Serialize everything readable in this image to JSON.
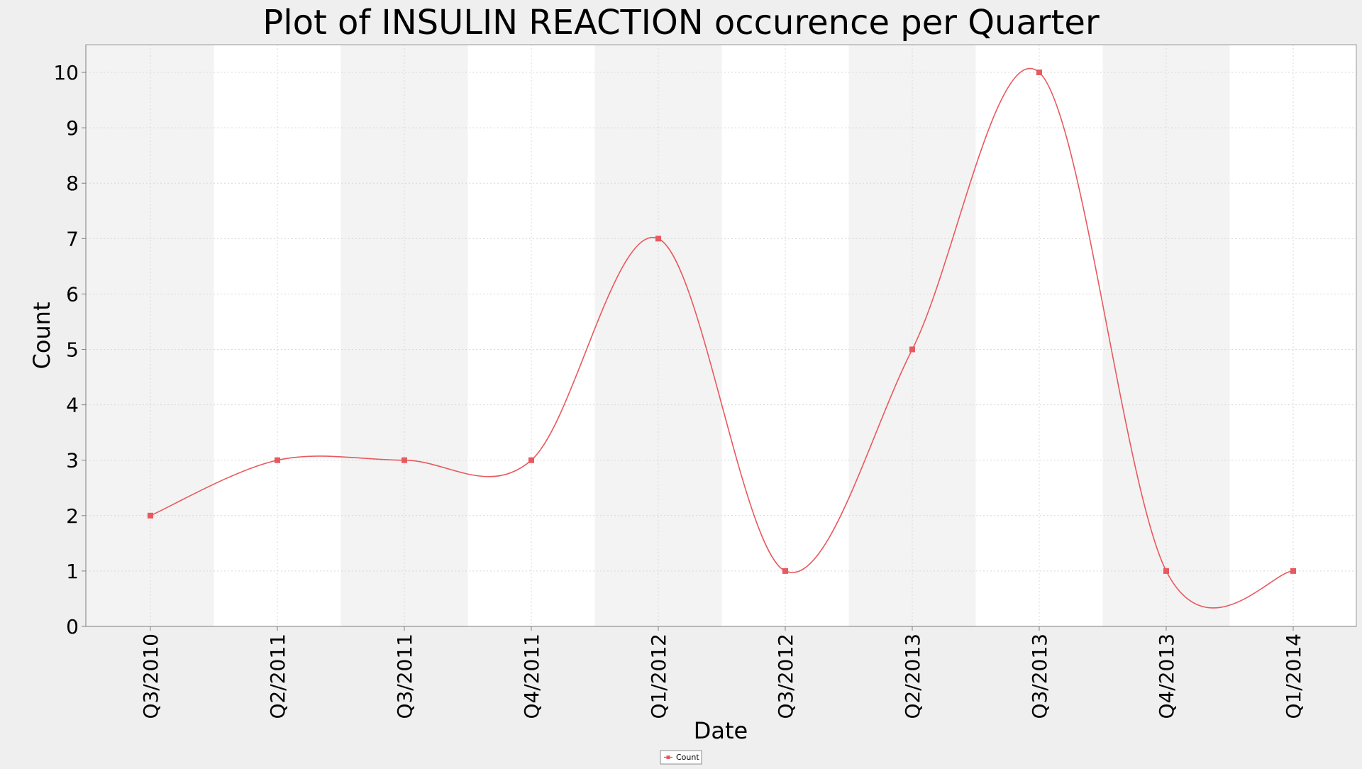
{
  "chart_data": {
    "type": "line",
    "title": "Plot of INSULIN REACTION occurence per Quarter",
    "xlabel": "Date",
    "ylabel": "Count",
    "categories": [
      "Q3/2010",
      "Q2/2011",
      "Q3/2011",
      "Q4/2011",
      "Q1/2012",
      "Q3/2012",
      "Q2/2013",
      "Q3/2013",
      "Q4/2013",
      "Q1/2014"
    ],
    "series": [
      {
        "name": "Count",
        "values": [
          2,
          3,
          3,
          3,
          7,
          1,
          5,
          10,
          1,
          1
        ]
      }
    ],
    "ylim": [
      0,
      10.5
    ],
    "yticks": [
      0,
      1,
      2,
      3,
      4,
      5,
      6,
      7,
      8,
      9,
      10
    ],
    "grid": true,
    "legend_position": "bottom-center",
    "line_style": "smoothed",
    "colors": {
      "series": "#e8595e",
      "plot_band_light": "#f3f3f3",
      "plot_band_white": "#ffffff",
      "page_background": "#efefef",
      "grid": "#d8d8d8"
    }
  }
}
